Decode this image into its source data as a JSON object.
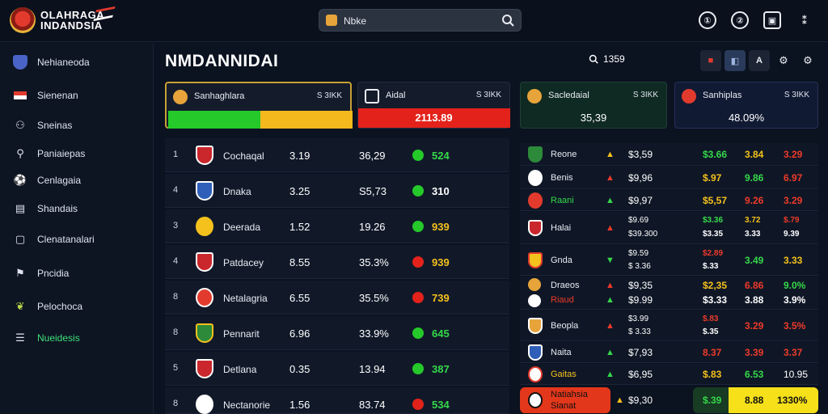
{
  "brand": {
    "line1": "OLAHRAGA",
    "line2": "INDANDSIA"
  },
  "search": {
    "value": "Nbke"
  },
  "top_icons": [
    "①",
    "②",
    "▣",
    "⁑"
  ],
  "sidebar": {
    "items": [
      {
        "label": "Nehianeoda",
        "icon": "shield-icon"
      },
      {
        "label": "Sienenan",
        "icon": "flag-icon"
      },
      {
        "label": "Sneinas",
        "icon": "user-icon"
      },
      {
        "label": "Paniaiepas",
        "icon": "search-icon"
      },
      {
        "label": "Cenlagaia",
        "icon": "ball-icon"
      },
      {
        "label": "Shandais",
        "icon": "list-icon"
      },
      {
        "label": "Clenatanalari",
        "icon": "chat-icon"
      },
      {
        "label": "Pncidia",
        "icon": "flag-icon"
      },
      {
        "label": "Pelochoca",
        "icon": "leaf-icon"
      },
      {
        "label": "Nueidesis",
        "icon": "menu-icon"
      }
    ]
  },
  "main": {
    "title": "NMDANNIDAI",
    "rate": "1359",
    "toolbar": [
      "■",
      "◧",
      "A",
      "⚙",
      "⚙"
    ]
  },
  "cards": [
    {
      "name": "Sanhaghlara",
      "value": "S 3IKK",
      "big": ""
    },
    {
      "name": "Aidal",
      "value": "S 3IKK",
      "big": "2113.89"
    },
    {
      "name": "Sacledaial",
      "value": "S 3IKK",
      "big": "35,39"
    },
    {
      "name": "Sanhiplas",
      "value": "S 3IKK",
      "big": "48.09%"
    }
  ],
  "left_table": [
    {
      "rank": "1",
      "team": "Cochaqal",
      "v1": "3.19",
      "v2": "36,29",
      "status": "g",
      "v3": "524"
    },
    {
      "rank": "4",
      "team": "Dnaka",
      "v1": "3.25",
      "v2": "S5,73",
      "status": "g",
      "v3": "310"
    },
    {
      "rank": "3",
      "team": "Deerada",
      "v1": "1.52",
      "v2": "19.26",
      "status": "g",
      "v3": "939"
    },
    {
      "rank": "4",
      "team": "Patdacey",
      "v1": "8.55",
      "v2": "35.3%",
      "status": "r",
      "v3": "939"
    },
    {
      "rank": "8",
      "team": "Netalagria",
      "v1": "6.55",
      "v2": "35.5%",
      "status": "r",
      "v3": "739"
    },
    {
      "rank": "8",
      "team": "Pennarit",
      "v1": "6.96",
      "v2": "33.9%",
      "status": "g",
      "v3": "645"
    },
    {
      "rank": "5",
      "team": "Detlana",
      "v1": "0.35",
      "v2": "13.94",
      "status": "g",
      "v3": "387"
    },
    {
      "rank": "8",
      "team": "Nectanorie",
      "v1": "1.56",
      "v2": "83.74",
      "status": "r",
      "v3": "534"
    }
  ],
  "right_table": [
    {
      "team": "Reone",
      "arrow": "▲",
      "o1": "$3,59",
      "o2": "$3.66",
      "o3": "3.84",
      "o4": "3.29",
      "ac": "y",
      "c2": "g",
      "c3": "y",
      "c4": "r"
    },
    {
      "team": "Benis",
      "arrow": "▲",
      "o1": "$9,96",
      "o2": "$.97",
      "o3": "9.86",
      "o4": "6.97",
      "ac": "r",
      "c2": "y",
      "c3": "g",
      "c4": "r"
    },
    {
      "team": "Raani",
      "arrow": "▲",
      "o1": "$9,97",
      "o2": "$5,57",
      "o3": "9.26",
      "o4": "3.29",
      "ac": "g",
      "c2": "y",
      "c3": "r",
      "c4": "r"
    },
    {
      "team": "Halai",
      "arrow": "▲",
      "o1": "$9.69",
      "o2": "$3.36",
      "o3": "3.72",
      "o4": "$.79",
      "ac": "r",
      "c2": "g",
      "c3": "y",
      "c4": "r",
      "sub1": "$39.300",
      "sub2": "$3.35",
      "sub3": "3.33",
      "sub4": "9.39"
    },
    {
      "team": "Gnda",
      "arrow": "▼",
      "o1": "$9.59",
      "o2": "$2.89",
      "o3": "3.49",
      "o4": "3.33",
      "ac": "g",
      "c2": "r",
      "c3": "g",
      "c4": "y",
      "sub1": "$ 3.36",
      "sub2": "$.33"
    },
    {
      "team": "Draeos",
      "arrow": "▲",
      "o1": "$9,35",
      "o2": "$2,35",
      "o3": "6.86",
      "o4": "9.0%",
      "ac": "r",
      "c2": "y",
      "c3": "r",
      "c4": "g",
      "sub_team": "Riaud",
      "sub1": "$9.99",
      "sub2": "$3.33",
      "sub3": "3.88",
      "sub4": "3.9%"
    },
    {
      "team": "Beopla",
      "arrow": "▲",
      "o1": "$3.99",
      "o2": "$.83",
      "o3": "3.29",
      "o4": "3.5%",
      "ac": "r",
      "c2": "r",
      "c3": "r",
      "c4": "r",
      "sub1": "$ 3.33",
      "sub2": "$.35"
    },
    {
      "team": "Naita",
      "arrow": "▲",
      "o1": "$7,93",
      "o2": "8.37",
      "o3": "3.39",
      "o4": "3.37",
      "ac": "g",
      "c2": "r",
      "c3": "r",
      "c4": "r"
    },
    {
      "team": "Gaitas",
      "arrow": "▲",
      "o1": "$6,95",
      "o2": "$.83",
      "o3": "6.53",
      "o4": "10.95",
      "ac": "g",
      "c2": "y",
      "c3": "g",
      "c4": "w"
    },
    {
      "team": "Natiahsia",
      "arrow": "▲",
      "o1": "$9,30",
      "o2": "$.39",
      "o3": "8.88",
      "o4": "1330%",
      "ac": "y",
      "c2": "g",
      "c3": "w",
      "c4": "w",
      "sub_team": "Sianat"
    }
  ]
}
